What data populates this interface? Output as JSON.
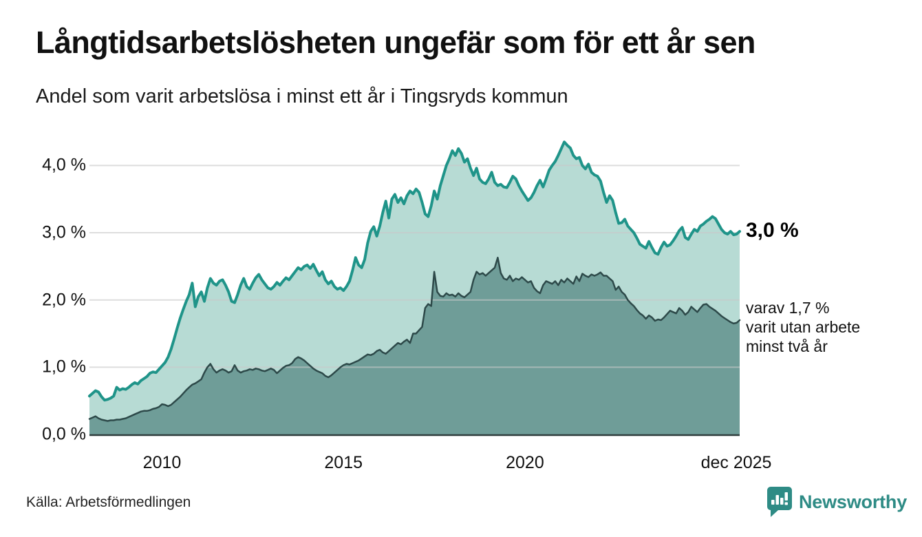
{
  "header": {
    "title": "Långtidsarbetslösheten ungefär som för ett år sen",
    "subtitle": "Andel som varit arbetslösa i minst ett år i Tingsryds kommun"
  },
  "annotations": {
    "latest_total": "3,0 %",
    "secondary": {
      "line1": "varav 1,7 %",
      "line2": "varit utan arbete",
      "line3": "minst två år"
    }
  },
  "footer": {
    "source": "Källa: Arbetsförmedlingen",
    "brand": "Newsworthy"
  },
  "colors": {
    "series1_line": "#1f9489",
    "series1_fill": "#b7dbd4",
    "series2_line": "#2d4949",
    "series2_fill": "#6f9d98",
    "gridline": "rgba(200,200,200,0.62)",
    "baseline": "#2f3d3c",
    "brand_teal": "#2e8b85"
  },
  "chart_data": {
    "type": "area",
    "unit": "%",
    "x_start": "2008-01",
    "x_end": "2025-12",
    "title": "Långtidsarbetslösheten ungefär som för ett år sen",
    "subtitle": "Andel som varit arbetslösa i minst ett år i Tingsryds kommun",
    "ylim": [
      0,
      4.4
    ],
    "grid": true,
    "legend_position": "right-annotations",
    "y_ticks": [
      {
        "label": "0,0 %",
        "value": 0
      },
      {
        "label": "1,0 %",
        "value": 1
      },
      {
        "label": "2,0 %",
        "value": 2
      },
      {
        "label": "3,0 %",
        "value": 3
      },
      {
        "label": "4,0 %",
        "value": 4
      }
    ],
    "x_ticks": [
      {
        "label": "2010",
        "month_index": 24
      },
      {
        "label": "2015",
        "month_index": 84
      },
      {
        "label": "2020",
        "month_index": 144
      },
      {
        "label": "dec 2025",
        "month_index": 215
      }
    ],
    "series": [
      {
        "name": "Arbetslösa minst ett år",
        "latest_value": 3.0,
        "values": [
          0.57,
          0.61,
          0.65,
          0.63,
          0.56,
          0.51,
          0.52,
          0.54,
          0.57,
          0.7,
          0.66,
          0.68,
          0.67,
          0.7,
          0.74,
          0.77,
          0.75,
          0.8,
          0.83,
          0.86,
          0.91,
          0.93,
          0.92,
          0.97,
          1.02,
          1.07,
          1.15,
          1.27,
          1.42,
          1.58,
          1.73,
          1.86,
          1.98,
          2.08,
          2.25,
          1.9,
          2.05,
          2.12,
          1.98,
          2.18,
          2.32,
          2.25,
          2.22,
          2.28,
          2.3,
          2.22,
          2.12,
          1.98,
          1.96,
          2.08,
          2.22,
          2.32,
          2.2,
          2.16,
          2.25,
          2.33,
          2.38,
          2.3,
          2.24,
          2.18,
          2.16,
          2.2,
          2.26,
          2.22,
          2.28,
          2.33,
          2.3,
          2.36,
          2.42,
          2.48,
          2.45,
          2.5,
          2.52,
          2.47,
          2.53,
          2.44,
          2.36,
          2.42,
          2.3,
          2.24,
          2.28,
          2.2,
          2.16,
          2.18,
          2.14,
          2.2,
          2.28,
          2.44,
          2.63,
          2.52,
          2.48,
          2.6,
          2.85,
          3.02,
          3.09,
          2.95,
          3.1,
          3.3,
          3.47,
          3.22,
          3.5,
          3.57,
          3.45,
          3.52,
          3.43,
          3.55,
          3.62,
          3.58,
          3.65,
          3.6,
          3.45,
          3.28,
          3.24,
          3.4,
          3.62,
          3.5,
          3.7,
          3.85,
          4.0,
          4.1,
          4.22,
          4.15,
          4.25,
          4.18,
          4.05,
          4.1,
          3.96,
          3.85,
          3.96,
          3.8,
          3.75,
          3.73,
          3.8,
          3.9,
          3.75,
          3.7,
          3.72,
          3.68,
          3.67,
          3.75,
          3.84,
          3.8,
          3.7,
          3.62,
          3.55,
          3.48,
          3.52,
          3.6,
          3.7,
          3.78,
          3.68,
          3.8,
          3.93,
          4.0,
          4.06,
          4.15,
          4.25,
          4.35,
          4.3,
          4.26,
          4.15,
          4.1,
          4.12,
          4.0,
          3.95,
          4.02,
          3.9,
          3.86,
          3.84,
          3.77,
          3.6,
          3.45,
          3.55,
          3.48,
          3.3,
          3.14,
          3.15,
          3.2,
          3.1,
          3.05,
          3.0,
          2.92,
          2.83,
          2.8,
          2.77,
          2.87,
          2.78,
          2.7,
          2.68,
          2.78,
          2.86,
          2.8,
          2.82,
          2.88,
          2.95,
          3.03,
          3.08,
          2.93,
          2.9,
          2.98,
          3.05,
          3.02,
          3.1,
          3.13,
          3.17,
          3.2,
          3.24,
          3.21,
          3.13,
          3.05,
          3.0,
          2.98,
          3.02,
          2.97,
          2.98,
          3.02
        ]
      },
      {
        "name": "varav utan arbete minst två år",
        "latest_value": 1.7,
        "values": [
          0.23,
          0.25,
          0.27,
          0.24,
          0.22,
          0.21,
          0.2,
          0.21,
          0.21,
          0.22,
          0.22,
          0.23,
          0.24,
          0.26,
          0.28,
          0.3,
          0.32,
          0.34,
          0.35,
          0.35,
          0.36,
          0.38,
          0.39,
          0.41,
          0.45,
          0.44,
          0.42,
          0.44,
          0.48,
          0.52,
          0.56,
          0.61,
          0.66,
          0.7,
          0.74,
          0.76,
          0.79,
          0.82,
          0.92,
          1.0,
          1.05,
          0.97,
          0.92,
          0.95,
          0.97,
          0.95,
          0.92,
          0.94,
          1.03,
          0.95,
          0.92,
          0.94,
          0.95,
          0.97,
          0.96,
          0.98,
          0.97,
          0.95,
          0.94,
          0.96,
          0.98,
          0.96,
          0.91,
          0.95,
          0.99,
          1.02,
          1.03,
          1.06,
          1.12,
          1.15,
          1.13,
          1.1,
          1.06,
          1.02,
          0.98,
          0.95,
          0.93,
          0.91,
          0.87,
          0.85,
          0.88,
          0.92,
          0.96,
          1.0,
          1.03,
          1.05,
          1.04,
          1.06,
          1.08,
          1.1,
          1.13,
          1.16,
          1.19,
          1.18,
          1.2,
          1.24,
          1.26,
          1.22,
          1.2,
          1.24,
          1.28,
          1.32,
          1.36,
          1.34,
          1.38,
          1.41,
          1.36,
          1.5,
          1.5,
          1.55,
          1.6,
          1.88,
          1.94,
          1.91,
          2.42,
          2.12,
          2.06,
          2.05,
          2.1,
          2.07,
          2.08,
          2.05,
          2.1,
          2.06,
          2.04,
          2.08,
          2.12,
          2.3,
          2.42,
          2.38,
          2.4,
          2.36,
          2.4,
          2.44,
          2.48,
          2.63,
          2.4,
          2.32,
          2.3,
          2.36,
          2.28,
          2.32,
          2.3,
          2.34,
          2.3,
          2.26,
          2.28,
          2.18,
          2.13,
          2.1,
          2.22,
          2.28,
          2.26,
          2.24,
          2.28,
          2.22,
          2.3,
          2.26,
          2.32,
          2.28,
          2.24,
          2.35,
          2.28,
          2.39,
          2.36,
          2.34,
          2.38,
          2.36,
          2.38,
          2.41,
          2.36,
          2.36,
          2.32,
          2.28,
          2.15,
          2.2,
          2.12,
          2.08,
          2.0,
          1.95,
          1.91,
          1.85,
          1.8,
          1.77,
          1.72,
          1.77,
          1.74,
          1.69,
          1.71,
          1.7,
          1.74,
          1.79,
          1.84,
          1.82,
          1.8,
          1.88,
          1.84,
          1.78,
          1.82,
          1.9,
          1.86,
          1.82,
          1.88,
          1.93,
          1.94,
          1.9,
          1.87,
          1.84,
          1.8,
          1.76,
          1.73,
          1.7,
          1.67,
          1.65,
          1.66,
          1.7
        ]
      }
    ]
  }
}
